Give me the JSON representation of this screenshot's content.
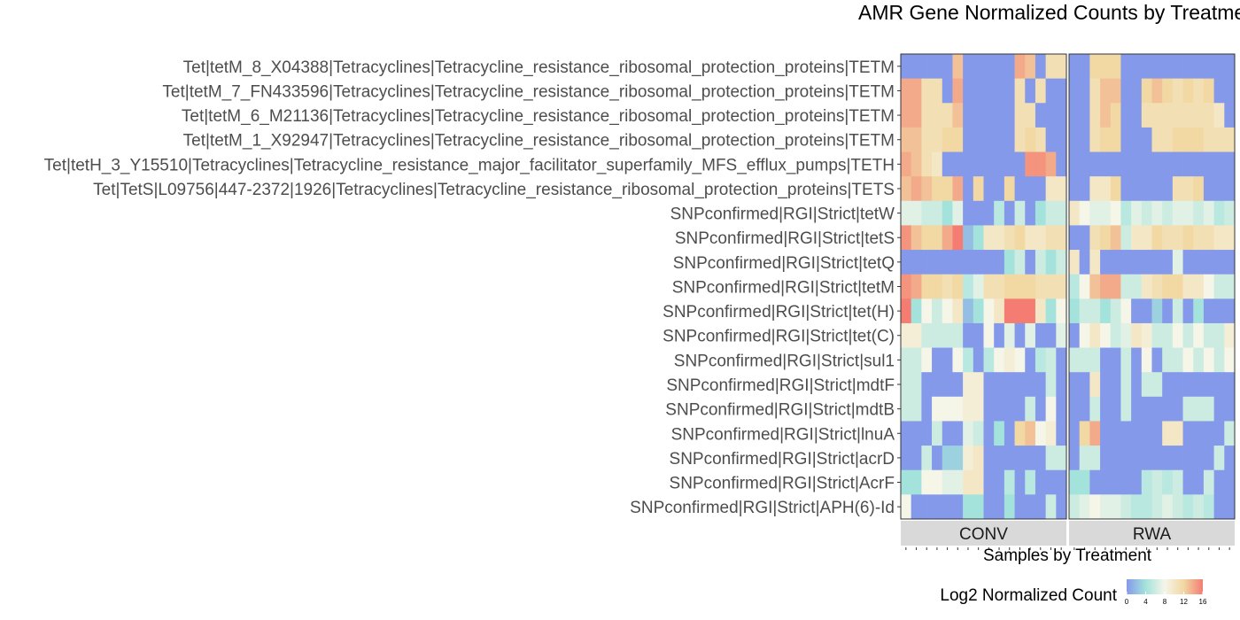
{
  "chart_data": {
    "type": "heatmap",
    "title": "AMR Gene Normalized Counts by Treatment",
    "xlabel": "Samples by Treatment",
    "ylabel": "",
    "panels": [
      "CONV",
      "RWA"
    ],
    "samples_per_panel": 16,
    "rows": [
      "Tet|tetM_8_X04388|Tetracyclines|Tetracycline_resistance_ribosomal_protection_proteins|TETM",
      "Tet|tetM_7_FN433596|Tetracyclines|Tetracycline_resistance_ribosomal_protection_proteins|TETM",
      "Tet|tetM_6_M21136|Tetracyclines|Tetracycline_resistance_ribosomal_protection_proteins|TETM",
      "Tet|tetM_1_X92947|Tetracyclines|Tetracycline_resistance_ribosomal_protection_proteins|TETM",
      "Tet|tetH_3_Y15510|Tetracyclines|Tetracycline_resistance_major_facilitator_superfamily_MFS_efflux_pumps|TETH",
      "Tet|TetS|L09756|447-2372|1926|Tetracyclines|Tetracycline_resistance_ribosomal_protection_proteins|TETS",
      "SNPconfirmed|RGI|Strict|tetW",
      "SNPconfirmed|RGI|Strict|tetS",
      "SNPconfirmed|RGI|Strict|tetQ",
      "SNPconfirmed|RGI|Strict|tetM",
      "SNPconfirmed|RGI|Strict|tet(H)",
      "SNPconfirmed|RGI|Strict|tet(C)",
      "SNPconfirmed|RGI|Strict|sul1",
      "SNPconfirmed|RGI|Strict|mdtF",
      "SNPconfirmed|RGI|Strict|mdtB",
      "SNPconfirmed|RGI|Strict|lnuA",
      "SNPconfirmed|RGI|Strict|acrD",
      "SNPconfirmed|RGI|Strict|AcrF",
      "SNPconfirmed|RGI|Strict|APH(6)-Id"
    ],
    "values": {
      "CONV": [
        [
          0,
          0,
          0,
          0,
          0,
          13,
          0,
          0,
          0,
          0,
          0,
          14,
          13,
          0,
          11,
          11
        ],
        [
          14,
          14,
          11,
          11,
          0,
          14,
          0,
          0,
          0,
          0,
          0,
          11,
          0,
          11,
          0,
          0
        ],
        [
          14,
          14,
          11,
          11,
          11,
          13,
          0,
          0,
          0,
          0,
          0,
          11,
          11,
          0,
          0,
          0
        ],
        [
          13,
          13,
          11,
          11,
          12,
          12,
          0,
          0,
          0,
          0,
          0,
          11,
          12,
          11,
          0,
          0
        ],
        [
          14,
          13,
          11,
          10,
          0,
          0,
          0,
          0,
          0,
          0,
          0,
          0,
          15,
          15,
          14,
          0
        ],
        [
          13,
          14,
          13,
          12,
          12,
          14,
          0,
          12,
          0,
          0,
          12,
          0,
          0,
          0,
          10,
          10
        ],
        [
          7,
          7,
          6,
          6,
          4,
          7,
          0,
          0,
          0,
          5,
          0,
          6,
          0,
          4,
          6,
          6
        ],
        [
          15,
          13,
          12,
          12,
          14,
          16,
          2,
          4,
          10,
          10,
          11,
          12,
          10,
          10,
          11,
          11
        ],
        [
          0,
          0,
          0,
          0,
          0,
          0,
          0,
          0,
          0,
          0,
          4,
          6,
          0,
          6,
          4,
          6
        ],
        [
          15,
          14,
          12,
          12,
          11,
          12,
          5,
          7,
          11,
          11,
          12,
          12,
          12,
          11,
          11,
          11
        ],
        [
          16,
          4,
          8,
          6,
          8,
          10,
          2,
          4,
          8,
          10,
          16,
          16,
          16,
          10,
          4,
          8
        ],
        [
          9,
          9,
          6,
          6,
          6,
          6,
          0,
          0,
          8,
          0,
          7,
          0,
          7,
          0,
          0,
          7
        ],
        [
          6,
          6,
          8,
          0,
          0,
          8,
          5,
          0,
          5,
          8,
          9,
          8,
          0,
          5,
          6,
          0
        ],
        [
          6,
          6,
          0,
          0,
          0,
          0,
          9,
          9,
          0,
          0,
          0,
          0,
          0,
          0,
          6,
          0
        ],
        [
          6,
          6,
          0,
          8,
          8,
          8,
          9,
          9,
          0,
          0,
          0,
          0,
          6,
          0,
          8,
          0
        ],
        [
          0,
          0,
          0,
          6,
          0,
          0,
          7,
          6,
          0,
          4,
          0,
          12,
          13,
          8,
          9,
          0
        ],
        [
          0,
          0,
          6,
          0,
          3,
          3,
          9,
          10,
          0,
          0,
          0,
          0,
          0,
          0,
          6,
          6
        ],
        [
          4,
          4,
          8,
          8,
          7,
          7,
          10,
          10,
          0,
          0,
          5,
          0,
          5,
          0,
          0,
          0
        ],
        [
          8,
          0,
          0,
          0,
          0,
          0,
          4,
          4,
          0,
          0,
          4,
          0,
          0,
          0,
          6,
          0
        ]
      ],
      "RWA": [
        [
          0,
          0,
          12,
          12,
          12,
          0,
          0,
          0,
          0,
          0,
          0,
          0,
          0,
          0,
          0,
          0
        ],
        [
          0,
          0,
          11,
          13,
          13,
          0,
          0,
          12,
          13,
          12,
          11,
          12,
          11,
          12,
          0,
          0
        ],
        [
          0,
          0,
          11,
          13,
          12,
          0,
          0,
          11,
          11,
          11,
          11,
          11,
          11,
          11,
          10,
          0
        ],
        [
          0,
          0,
          11,
          12,
          12,
          0,
          0,
          0,
          11,
          11,
          12,
          12,
          12,
          11,
          11,
          11
        ],
        [
          0,
          0,
          0,
          0,
          0,
          0,
          0,
          0,
          0,
          0,
          0,
          0,
          0,
          0,
          0,
          0
        ],
        [
          0,
          0,
          10,
          10,
          12,
          0,
          0,
          0,
          0,
          0,
          11,
          11,
          12,
          0,
          0,
          0
        ],
        [
          10,
          8,
          7,
          7,
          8,
          5,
          7,
          6,
          7,
          6,
          7,
          7,
          6,
          7,
          5,
          6
        ],
        [
          0,
          0,
          11,
          12,
          13,
          6,
          10,
          10,
          12,
          11,
          11,
          12,
          11,
          11,
          10,
          10
        ],
        [
          10,
          0,
          10,
          0,
          0,
          0,
          0,
          0,
          0,
          0,
          7,
          0,
          0,
          0,
          0,
          0
        ],
        [
          5,
          8,
          13,
          14,
          14,
          6,
          6,
          10,
          11,
          12,
          12,
          10,
          10,
          8,
          6,
          6
        ],
        [
          4,
          6,
          6,
          4,
          6,
          8,
          0,
          0,
          3,
          0,
          6,
          0,
          4,
          0,
          0,
          0
        ],
        [
          0,
          8,
          10,
          8,
          6,
          7,
          10,
          9,
          6,
          6,
          8,
          6,
          8,
          6,
          6,
          9
        ],
        [
          6,
          6,
          6,
          0,
          0,
          6,
          0,
          8,
          0,
          6,
          6,
          8,
          6,
          8,
          6,
          8
        ],
        [
          0,
          0,
          10,
          0,
          0,
          6,
          0,
          6,
          6,
          0,
          0,
          0,
          0,
          0,
          0,
          0
        ],
        [
          0,
          0,
          6,
          0,
          0,
          6,
          0,
          0,
          0,
          0,
          0,
          6,
          6,
          6,
          0,
          0
        ],
        [
          0,
          12,
          14,
          0,
          0,
          0,
          0,
          0,
          0,
          10,
          10,
          0,
          0,
          0,
          0,
          6
        ],
        [
          0,
          6,
          6,
          0,
          0,
          0,
          0,
          0,
          0,
          0,
          0,
          0,
          0,
          0,
          6,
          0
        ],
        [
          4,
          4,
          0,
          0,
          0,
          0,
          0,
          5,
          6,
          5,
          6,
          0,
          0,
          6,
          0,
          0
        ],
        [
          6,
          7,
          8,
          7,
          7,
          6,
          5,
          5,
          6,
          7,
          6,
          5,
          6,
          5,
          0,
          0
        ]
      ]
    },
    "legend": {
      "title": "Log2 Normalized Count",
      "ticks": [
        0,
        4,
        8,
        12,
        16
      ],
      "range": [
        0,
        16
      ],
      "colors": [
        "#8599ea",
        "#a3e3dc",
        "#f5f5e8",
        "#f2d8a3",
        "#f47c72"
      ],
      "placement": "bottom"
    }
  }
}
